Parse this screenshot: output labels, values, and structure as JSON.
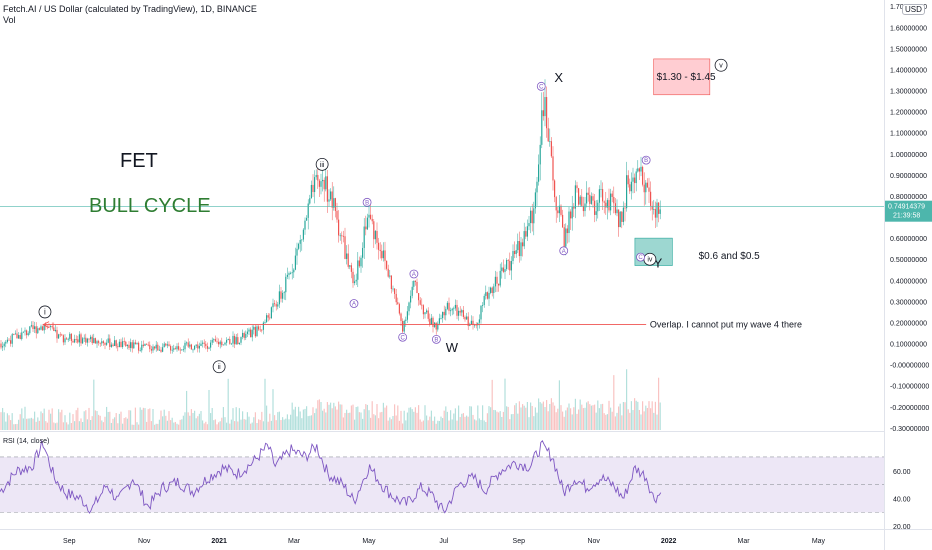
{
  "header": {
    "title": "Fetch.AI / US Dollar (calculated by TradingView), 1D, BINANCE",
    "vol_label": "Vol",
    "currency": "USD"
  },
  "colors": {
    "bull": "#26a69a",
    "bear": "#ef5350",
    "rsi_line": "#7e57c2",
    "rsi_band": "#ede7f6",
    "overlap_line": "#ef5350",
    "price_line": "#4db6ac",
    "text_green": "#2e7d32",
    "label_circle": "#7e57c2"
  },
  "chart_data": {
    "type": "candlestick",
    "y_tick_labels": [
      "1.70000000",
      "1.60000000",
      "1.50000000",
      "1.40000000",
      "1.30000000",
      "1.20000000",
      "1.10000000",
      "1.00000000",
      "0.90000000",
      "0.80000000",
      "0.70000000",
      "0.60000000",
      "0.50000000",
      "0.40000000",
      "0.30000000",
      "0.20000000",
      "0.10000000",
      "-0.00000000",
      "-0.10000000",
      "-0.20000000",
      "-0.30000000"
    ],
    "y_ticks": [
      1.7,
      1.6,
      1.5,
      1.4,
      1.3,
      1.2,
      1.1,
      1.0,
      0.9,
      0.8,
      0.7,
      0.6,
      0.5,
      0.4,
      0.3,
      0.2,
      0.1,
      0.0,
      -0.1,
      -0.2,
      -0.3
    ],
    "ylim": [
      -0.31,
      1.72
    ],
    "x_tick_labels": [
      "Sep",
      "Nov",
      "2021",
      "Mar",
      "May",
      "Jul",
      "Sep",
      "Nov",
      "2022",
      "Mar",
      "May"
    ],
    "x_ticks": [
      0.5,
      2.5,
      4.5,
      6.5,
      8.5,
      10.5,
      12.5,
      14.5,
      16.5,
      18.5,
      20.5
    ],
    "xlim": [
      -1.35,
      22.25
    ],
    "last_price": "0.74914379",
    "countdown": "21:39:58",
    "price_path": [
      [
        -1.35,
        0.1
      ],
      [
        -0.15,
        0.19
      ],
      [
        0.2,
        0.13
      ],
      [
        1.0,
        0.12
      ],
      [
        2.0,
        0.09
      ],
      [
        3.0,
        0.08
      ],
      [
        4.0,
        0.09
      ],
      [
        5.0,
        0.12
      ],
      [
        5.6,
        0.17
      ],
      [
        6.2,
        0.34
      ],
      [
        6.7,
        0.6
      ],
      [
        7.0,
        0.82
      ],
      [
        7.3,
        0.88
      ],
      [
        7.6,
        0.72
      ],
      [
        7.85,
        0.55
      ],
      [
        8.1,
        0.35
      ],
      [
        8.45,
        0.72
      ],
      [
        8.8,
        0.56
      ],
      [
        9.1,
        0.38
      ],
      [
        9.4,
        0.18
      ],
      [
        9.7,
        0.38
      ],
      [
        10.0,
        0.24
      ],
      [
        10.3,
        0.17
      ],
      [
        10.6,
        0.28
      ],
      [
        11.0,
        0.23
      ],
      [
        11.3,
        0.18
      ],
      [
        11.7,
        0.35
      ],
      [
        12.1,
        0.45
      ],
      [
        12.5,
        0.55
      ],
      [
        12.9,
        0.72
      ],
      [
        13.15,
        1.27
      ],
      [
        13.4,
        0.88
      ],
      [
        13.7,
        0.59
      ],
      [
        14.0,
        0.8
      ],
      [
        14.4,
        0.75
      ],
      [
        14.8,
        0.8
      ],
      [
        15.2,
        0.68
      ],
      [
        15.4,
        0.86
      ],
      [
        15.8,
        0.92
      ],
      [
        16.1,
        0.7
      ],
      [
        16.3,
        0.75
      ]
    ],
    "rsi": {
      "label": "RSI (14, close)",
      "ticks": [
        60,
        40,
        20
      ],
      "tick_labels": [
        "60.00",
        "40.00",
        "20.00"
      ],
      "bands": [
        70,
        50,
        30
      ],
      "ylim": [
        18,
        88
      ],
      "path": [
        [
          -1.35,
          45
        ],
        [
          -0.9,
          60
        ],
        [
          -0.5,
          63
        ],
        [
          -0.2,
          80
        ],
        [
          0.1,
          55
        ],
        [
          0.4,
          44
        ],
        [
          0.8,
          40
        ],
        [
          1.1,
          32
        ],
        [
          1.5,
          50
        ],
        [
          1.8,
          38
        ],
        [
          2.2,
          55
        ],
        [
          2.6,
          34
        ],
        [
          3.0,
          48
        ],
        [
          3.4,
          52
        ],
        [
          3.8,
          45
        ],
        [
          4.2,
          55
        ],
        [
          4.6,
          62
        ],
        [
          5.0,
          58
        ],
        [
          5.4,
          66
        ],
        [
          5.8,
          78
        ],
        [
          6.0,
          63
        ],
        [
          6.4,
          75
        ],
        [
          6.8,
          70
        ],
        [
          7.1,
          78
        ],
        [
          7.4,
          58
        ],
        [
          7.8,
          50
        ],
        [
          8.1,
          38
        ],
        [
          8.5,
          63
        ],
        [
          8.9,
          48
        ],
        [
          9.2,
          40
        ],
        [
          9.5,
          36
        ],
        [
          9.9,
          48
        ],
        [
          10.2,
          42
        ],
        [
          10.5,
          30
        ],
        [
          10.9,
          50
        ],
        [
          11.3,
          55
        ],
        [
          11.6,
          46
        ],
        [
          12.0,
          60
        ],
        [
          12.4,
          66
        ],
        [
          12.8,
          63
        ],
        [
          13.1,
          78
        ],
        [
          13.4,
          70
        ],
        [
          13.7,
          44
        ],
        [
          14.0,
          55
        ],
        [
          14.3,
          48
        ],
        [
          14.7,
          55
        ],
        [
          15.0,
          50
        ],
        [
          15.3,
          40
        ],
        [
          15.6,
          62
        ],
        [
          15.9,
          56
        ],
        [
          16.1,
          40
        ],
        [
          16.3,
          44
        ]
      ]
    },
    "volume_note": "volume histogram (bars, no printed values)"
  },
  "annotations": {
    "fet": "FET",
    "bull_cycle": "BULL CYCLE",
    "target_high": "$1.30 - $1.45",
    "target_low": "$0.6 and $0.5",
    "overlap": "Overlap. I cannot put my wave 4 there",
    "w": "W",
    "x": "X",
    "y": "Y",
    "wave_i": "i",
    "wave_ii": "ii",
    "wave_iii": "iii",
    "wave_iv": "iv",
    "wave_v": "v",
    "a": "A",
    "b": "B",
    "c": "C"
  }
}
